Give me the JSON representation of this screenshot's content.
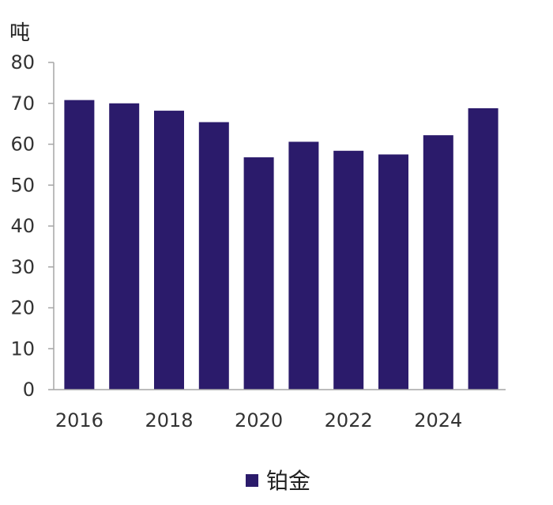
{
  "chart_data": {
    "type": "bar",
    "unit_label": "吨",
    "categories": [
      "2016",
      "2017",
      "2018",
      "2019",
      "2020",
      "2021",
      "2022",
      "2023",
      "2024",
      "2025"
    ],
    "x_tick_labels": [
      "2016",
      "",
      "2018",
      "",
      "2020",
      "",
      "2022",
      "",
      "2024",
      ""
    ],
    "series": [
      {
        "name": "铂金",
        "color": "#2B1B6B",
        "values": [
          70.8,
          70.0,
          68.2,
          65.4,
          56.8,
          60.6,
          58.4,
          57.5,
          62.2,
          68.8
        ]
      }
    ],
    "ylim": [
      0,
      80
    ],
    "y_ticks": [
      0,
      10,
      20,
      30,
      40,
      50,
      60,
      70,
      80
    ],
    "grid": false,
    "legend_position": "bottom"
  }
}
